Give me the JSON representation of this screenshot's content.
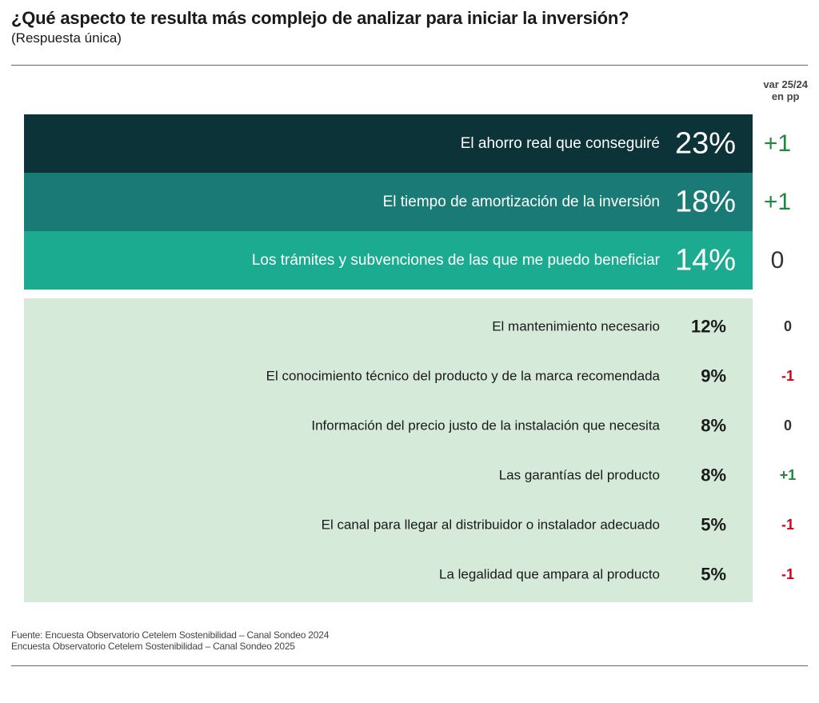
{
  "header": {
    "title": "¿Qué aspecto te resulta más complejo de analizar para iniciar la inversión?",
    "subtitle": "(Respuesta única)"
  },
  "var_header": {
    "line1": "var 25/24",
    "line2": "en pp"
  },
  "colors": {
    "top1": "#0b3338",
    "top2": "#1a7b76",
    "top3": "#1aab90",
    "rest_bg": "#d5ead9",
    "positive": "#1e8a3c",
    "negative": "#d0021b",
    "neutral": "#333333"
  },
  "chart_data": {
    "type": "table",
    "categories": [
      "El ahorro real que conseguiré",
      "El tiempo de amortización de la inversión",
      "Los trámites y subvenciones de las que me puedo beneficiar",
      "El mantenimiento necesario",
      "El conocimiento técnico del producto y de la marca recomendada",
      "Información del precio justo de la instalación que necesita",
      "Las garantías del producto",
      "El canal para llegar al distribuidor o instalador adecuado",
      "La legalidad que ampara al producto"
    ],
    "values": [
      23,
      18,
      14,
      12,
      9,
      8,
      8,
      5,
      5
    ],
    "value_labels": [
      "23%",
      "18%",
      "14%",
      "12%",
      "9%",
      "8%",
      "8%",
      "5%",
      "5%"
    ],
    "variation": [
      1,
      1,
      0,
      0,
      -1,
      0,
      1,
      -1,
      -1
    ],
    "variation_labels": [
      "+1",
      "+1",
      "0",
      "0",
      "-1",
      "0",
      "+1",
      "-1",
      "-1"
    ],
    "highlighted_count": 3
  },
  "source": {
    "line1": "Fuente: Encuesta Observatorio Cetelem Sostenibilidad – Canal Sondeo 2024",
    "line2": "Encuesta Observatorio Cetelem Sostenibilidad – Canal Sondeo 2025"
  }
}
